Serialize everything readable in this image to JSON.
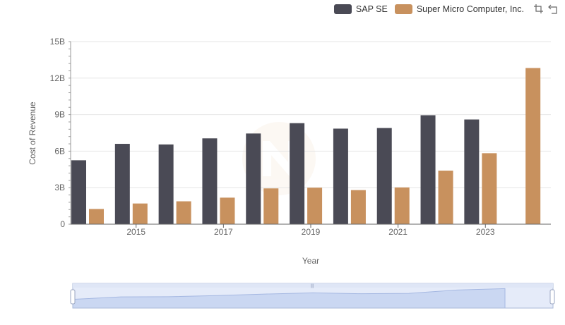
{
  "legend": {
    "items": [
      {
        "label": "SAP SE",
        "color": "#4a4a55"
      },
      {
        "label": "Super Micro Computer, Inc.",
        "color": "#c8915e"
      }
    ],
    "tools": [
      "zoom-icon",
      "restore-icon"
    ]
  },
  "chart_data": {
    "type": "bar",
    "xlabel": "Year",
    "ylabel": "Cost of Revenue",
    "x": [
      2014,
      2015,
      2016,
      2017,
      2018,
      2019,
      2020,
      2021,
      2022,
      2023,
      2024
    ],
    "x_tick_labels": [
      "2015",
      "2017",
      "2019",
      "2021",
      "2023"
    ],
    "y_tick_labels": [
      "0",
      "3B",
      "6B",
      "9B",
      "12B",
      "15B"
    ],
    "ylim": [
      0,
      15000000000
    ],
    "grid": true,
    "legend_position": "top-right",
    "series": [
      {
        "name": "SAP SE",
        "color": "#4a4a55",
        "values": [
          5250000000,
          6600000000,
          6550000000,
          7050000000,
          7450000000,
          8300000000,
          7850000000,
          7900000000,
          8950000000,
          8600000000,
          null
        ]
      },
      {
        "name": "Super Micro Computer, Inc.",
        "color": "#c8915e",
        "values": [
          1250000000,
          1700000000,
          1880000000,
          2180000000,
          2940000000,
          3000000000,
          2800000000,
          3020000000,
          4400000000,
          5830000000,
          12830000000
        ]
      }
    ]
  }
}
